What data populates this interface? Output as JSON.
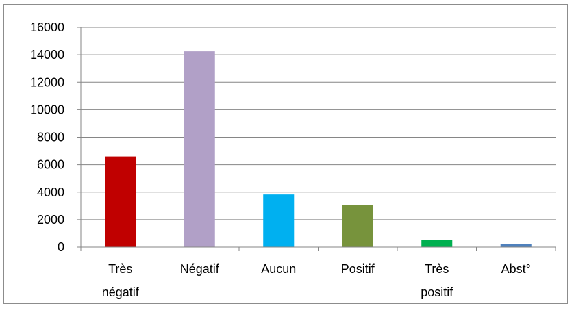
{
  "chart_data": {
    "type": "bar",
    "title": "",
    "xlabel": "",
    "ylabel": "",
    "categories": [
      [
        "Très",
        "négatif"
      ],
      [
        "Négatif"
      ],
      [
        "Aucun"
      ],
      [
        "Positif"
      ],
      [
        "Très",
        "positif"
      ],
      [
        "Abst°"
      ]
    ],
    "values": [
      6600,
      14250,
      3830,
      3080,
      540,
      240
    ],
    "colors": [
      "#c00000",
      "#b1a0c7",
      "#00b0f0",
      "#77933c",
      "#00b050",
      "#4f81bd"
    ],
    "ylim": [
      0,
      16000
    ],
    "yticks": [
      0,
      2000,
      4000,
      6000,
      8000,
      10000,
      12000,
      14000,
      16000
    ],
    "grid": true,
    "legend": "none"
  }
}
